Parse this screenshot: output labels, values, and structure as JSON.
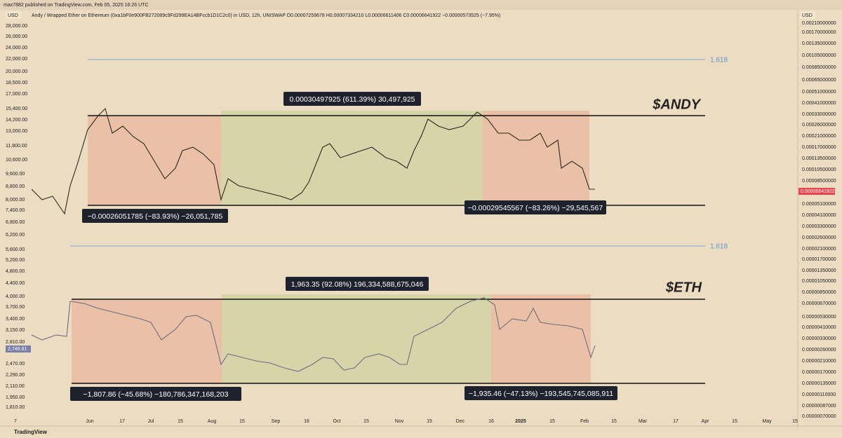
{
  "header": {
    "publisher": "max7882 published on TradingView.com, Feb 05, 2025 16:26 UTC"
  },
  "legend": "Andy / Wrapped Ether on Ethereum (0xa1bF0e900FB272089c9Fd299EA14BFccb1D1C2c0) in USD, 12h, UNISWAP  O0.00007259678  H0.00007334210  L0.00006611406  C0.00006641922  −0.00000573525 (−7.95%)",
  "left_axis": {
    "currency": "USD",
    "labels": [
      "28,000.00",
      "26,000.00",
      "24,000.00",
      "22,000.00",
      "20,000.00",
      "18,500.00",
      "17,000.00",
      "15,400.00",
      "14,200.00",
      "13,000.00",
      "11,800.00",
      "10,600.00",
      "9,600.00",
      "8,800.00",
      "8,000.00",
      "7,400.00",
      "6,800.00",
      "6,200.00",
      "5,600.00",
      "5,200.00",
      "4,800.00",
      "4,400.00",
      "4,000.00",
      "3,700.00",
      "3,400.00",
      "3,150.00",
      "2,810.00",
      "2,470.00",
      "2,290.00",
      "2,110.00",
      "1,950.00",
      "1,810.00"
    ],
    "current": "2,749.61"
  },
  "right_axis": {
    "currency": "USD",
    "labels": [
      "0.00210000000",
      "0.00170000000",
      "0.00135000000",
      "0.00105000000",
      "0.00085000000",
      "0.00065000000",
      "0.00051000000",
      "0.00041000000",
      "0.00033000000",
      "0.00026000000",
      "0.00021000000",
      "0.00017000000",
      "0.00013500000",
      "0.00010500000",
      "0.00008500000",
      "0.00005100000",
      "0.00004100000",
      "0.00003300000",
      "0.00002600000",
      "0.00002100000",
      "0.00001700000",
      "0.00001350000",
      "0.00001050000",
      "0.00000850000",
      "0.00000670000",
      "0.00000530000",
      "0.00000410000",
      "0.00000330000",
      "0.00000260000",
      "0.00000210000",
      "0.00000170000",
      "0.00000135000",
      "0.00000110000",
      "0.00000087000",
      "0.00000070000"
    ],
    "current": "0.00006641922"
  },
  "time_axis": [
    "7",
    "Jun",
    "17",
    "Jul",
    "15",
    "Aug",
    "15",
    "Sep",
    "16",
    "Oct",
    "15",
    "Nov",
    "15",
    "Dec",
    "16",
    "2025",
    "15",
    "Feb",
    "15",
    "Mar",
    "17",
    "Apr",
    "15",
    "May",
    "15"
  ],
  "andy": {
    "label": "$ANDY",
    "fib": "1.618",
    "range_up": "0.00030497925 (611.39%) 30,497,925",
    "range_down_1": "−0.00026051785 (−83.93%) −26,051,785",
    "range_down_2": "−0.00029545567 (−83.26%) −29,545,567"
  },
  "eth": {
    "label": "$ETH",
    "fib": "1.618",
    "range_up": "1,963.35 (92.08%) 196,334,588,675,046",
    "range_down_1": "−1,807.86 (−45.68%) −180,786,347,168,203",
    "range_down_2": "−1,935.46 (−47.13%) −193,545,745,085,911"
  },
  "footer": {
    "brand": "TradingView"
  }
}
